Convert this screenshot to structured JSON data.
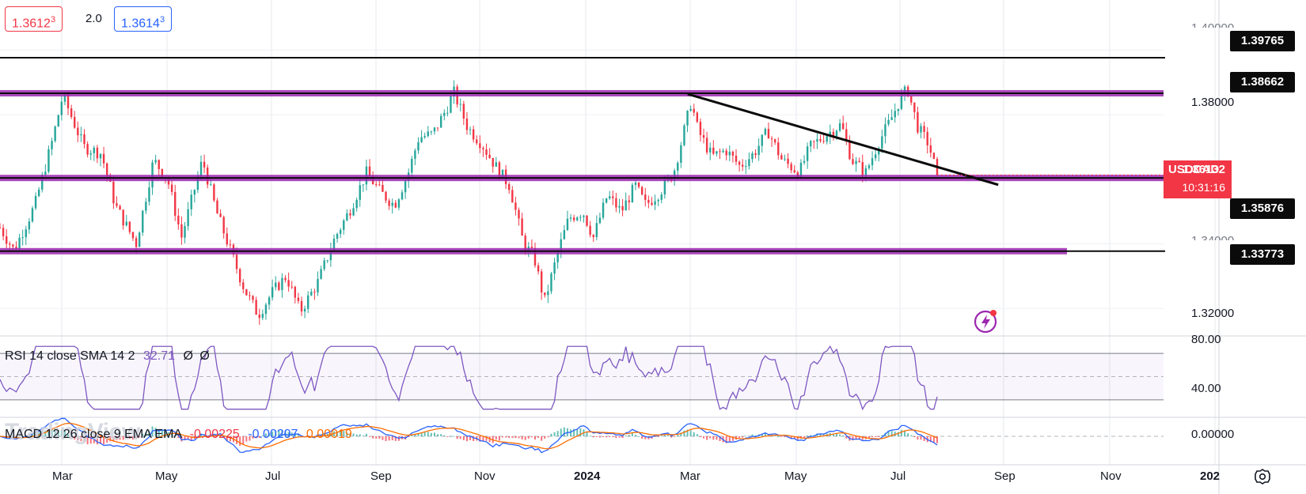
{
  "symbol": "USDCAD",
  "quote": {
    "bid": "1.3612",
    "bid_sup": "3",
    "spread": "2.0",
    "ask": "1.3614",
    "ask_sup": "3"
  },
  "price_axis": {
    "ticks": [
      {
        "label": "1.38000",
        "price": 1.38
      },
      {
        "label": "1.32000",
        "price": 1.32
      }
    ],
    "partial_ticks": [
      "1.40000",
      "1.34000"
    ],
    "ymin": 1.3115,
    "ymax": 1.4155
  },
  "levels": [
    {
      "label": "1.39765",
      "price": 1.39765,
      "style": "black-line"
    },
    {
      "label": "1.38662",
      "price": 1.38662,
      "style": "purple-band"
    },
    {
      "label": "1.35876",
      "price": 1.35876,
      "style": "tag-only"
    },
    {
      "label": "1.33773",
      "price": 1.33773,
      "style": "purple-band-short"
    }
  ],
  "support_band_price": 1.3604,
  "current": {
    "symbol": "USDCAD",
    "price": "1.36132",
    "timer": "10:31:16"
  },
  "trendline": {
    "start_month": 14.5,
    "start_price": 1.3864,
    "end_month": 22.3,
    "end_price": 1.3583
  },
  "time_axis": {
    "labels": [
      "Mar",
      "May",
      "Jul",
      "Sep",
      "Nov",
      "2024",
      "Mar",
      "May",
      "Jul",
      "Sep",
      "Nov",
      "202"
    ],
    "start_month": 1.0,
    "end_month": 24.0
  },
  "rsi": {
    "legend": "RSI 14 close SMA 14 2",
    "value": "32.71",
    "na1": "Ø",
    "na2": "Ø",
    "axis_labels": [
      "80.00",
      "40.00"
    ],
    "upper": 70,
    "lower": 30,
    "mid": 50,
    "color": "#7e57c2"
  },
  "macd": {
    "legend": "MACD 12 26 close 9 EMA EMA",
    "hist": "-0.00225",
    "macd": "-0.00207",
    "signal": "0.00019",
    "axis_label": "0.00000",
    "colors": {
      "hist": "#f23645",
      "macd": "#2962ff",
      "signal": "#ff6d00"
    }
  },
  "watermark": "TradingView",
  "colors": {
    "up": "#26a69a",
    "down": "#f23645",
    "band": "#9c27b0",
    "tag": "#f23645"
  },
  "icons": {
    "settings": "gear-icon",
    "lightning": "lightning-icon"
  }
}
